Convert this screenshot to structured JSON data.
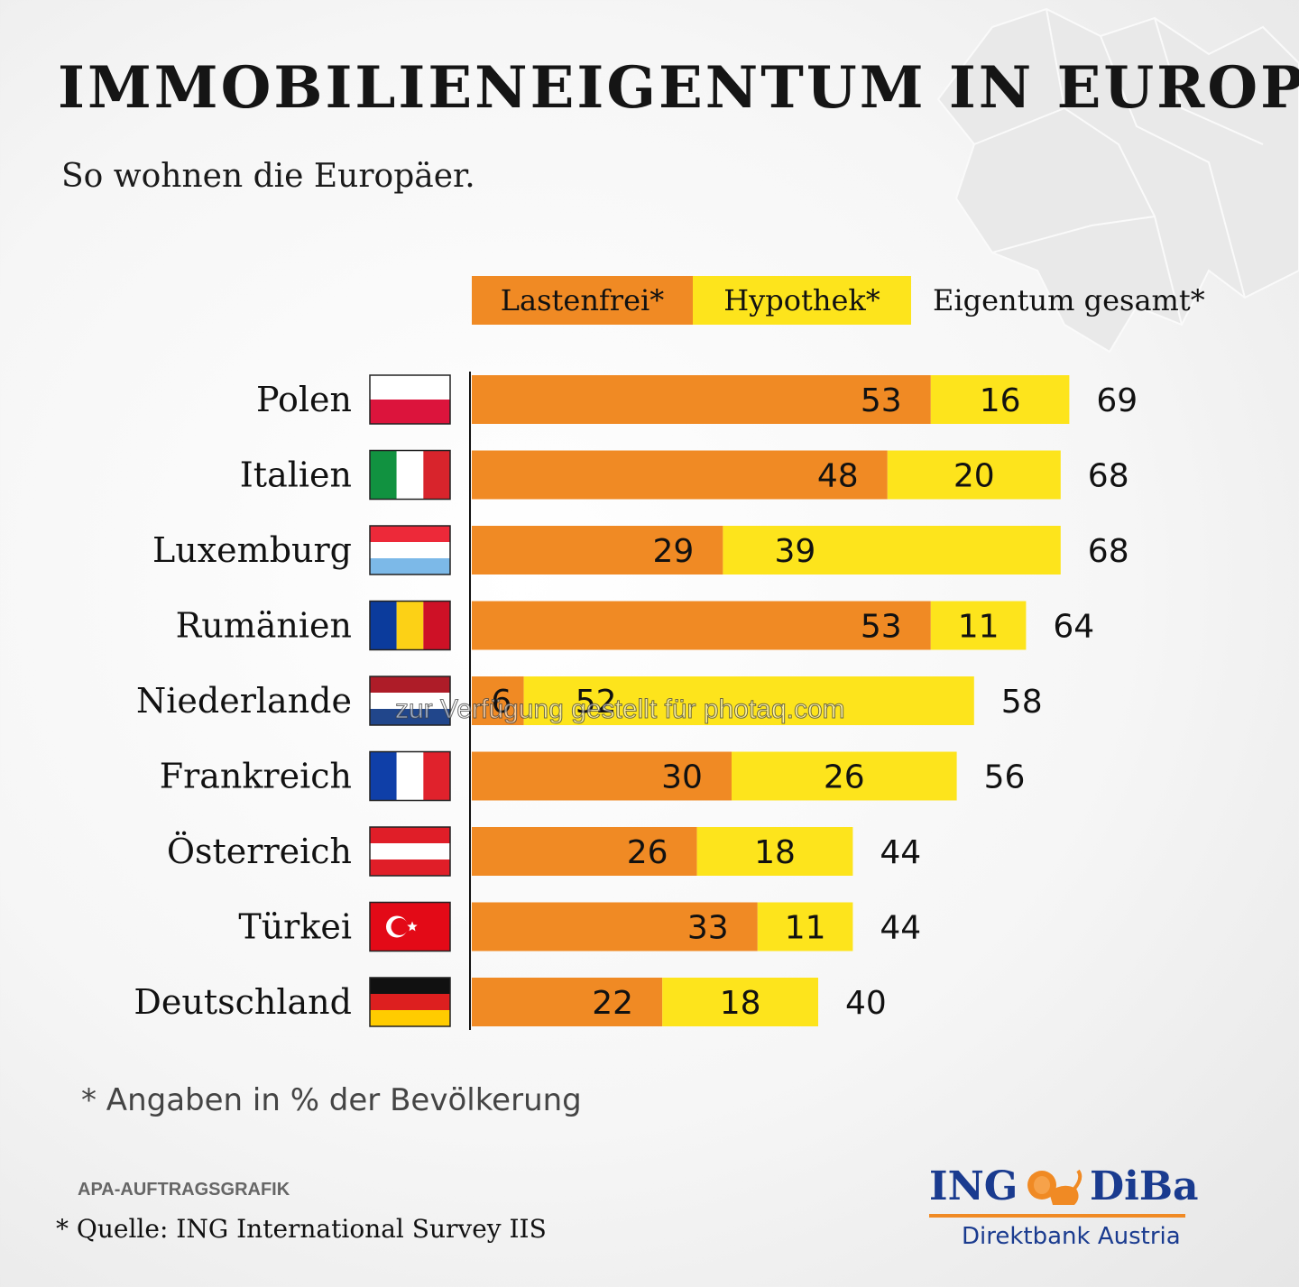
{
  "header": {
    "title": "IMMOBILIENEIGENTUM IN EUROPA",
    "subtitle": "So wohnen die Europäer."
  },
  "legend": {
    "lastenfrei": "Lastenfrei*",
    "hypothek": "Hypothek*",
    "gesamt": "Eigentum gesamt*"
  },
  "colors": {
    "lastenfrei": "#f08a24",
    "hypothek": "#fde41c"
  },
  "chart_data": {
    "type": "bar",
    "orientation": "horizontal",
    "stacked": true,
    "categories": [
      "Polen",
      "Italien",
      "Luxemburg",
      "Rumänien",
      "Niederlande",
      "Frankreich",
      "Österreich",
      "Türkei",
      "Deutschland"
    ],
    "series": [
      {
        "name": "Lastenfrei*",
        "values": [
          53,
          48,
          29,
          53,
          6,
          30,
          26,
          33,
          22
        ]
      },
      {
        "name": "Hypothek*",
        "values": [
          16,
          20,
          39,
          11,
          52,
          26,
          18,
          11,
          18
        ]
      }
    ],
    "totals_label": "Eigentum gesamt*",
    "totals": [
      69,
      68,
      68,
      64,
      58,
      56,
      44,
      44,
      40
    ],
    "legend_position": "top",
    "grid": false
  },
  "flags": [
    "poland-flag-icon",
    "italy-flag-icon",
    "luxembourg-flag-icon",
    "romania-flag-icon",
    "netherlands-flag-icon",
    "france-flag-icon",
    "austria-flag-icon",
    "turkey-flag-icon",
    "germany-flag-icon"
  ],
  "footer": {
    "note": "* Angaben in % der Bevölkerung",
    "credit": "APA-AUFTRAGSGRAFIK",
    "source": "* Quelle: ING International Survey IIS"
  },
  "watermark": "zur Verfügung gestellt für photaq.com",
  "logo": {
    "brand_left": "ING",
    "brand_right": "DiBa",
    "tagline": "Direktbank Austria"
  }
}
